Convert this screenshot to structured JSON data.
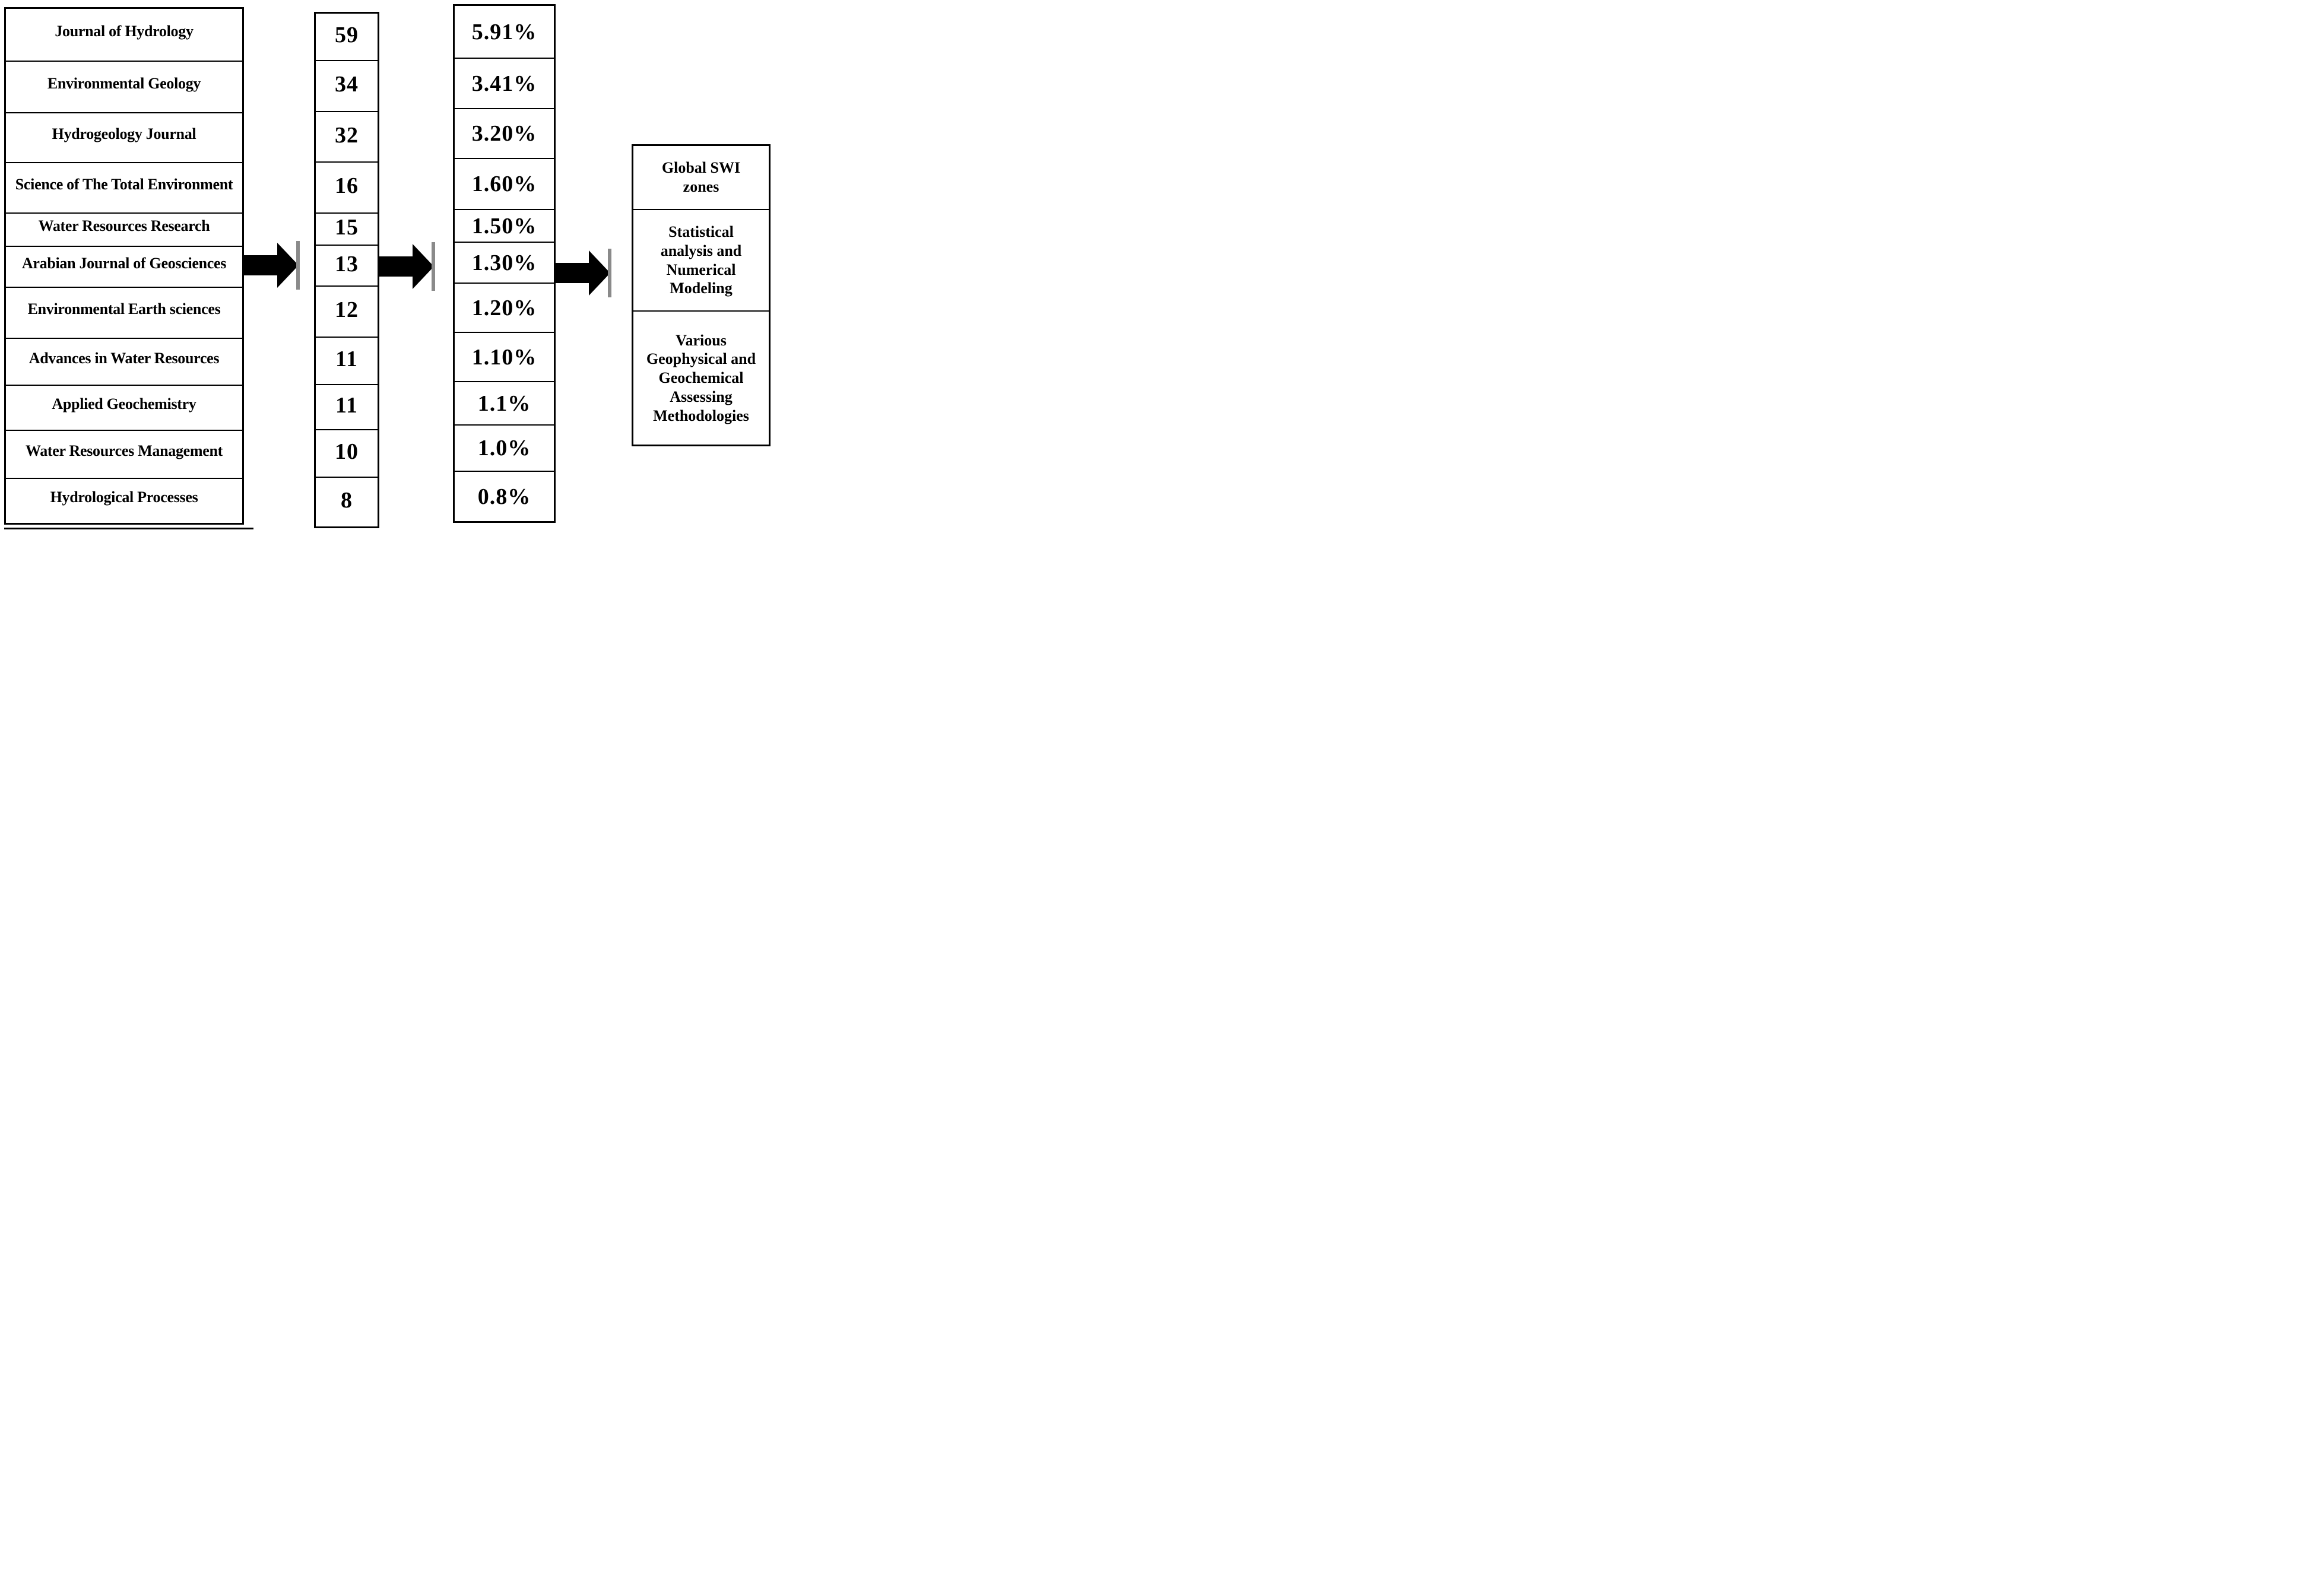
{
  "journal_table": {
    "rows": [
      {
        "name": "Journal of Hydrology",
        "count": "59",
        "percent": "5.91%"
      },
      {
        "name": "Environmental Geology",
        "count": "34",
        "percent": "3.41%"
      },
      {
        "name": "Hydrogeology Journal",
        "count": "32",
        "percent": "3.20%"
      },
      {
        "name": "Science of The Total Environment",
        "count": "16",
        "percent": "1.60%"
      },
      {
        "name": "Water Resources Research",
        "count": "15",
        "percent": "1.50%"
      },
      {
        "name": "Arabian Journal of Geosciences",
        "count": "13",
        "percent": "1.30%"
      },
      {
        "name": "Environmental Earth sciences",
        "count": "12",
        "percent": "1.20%"
      },
      {
        "name": "Advances in Water Resources",
        "count": "11",
        "percent": "1.10%"
      },
      {
        "name": "Applied Geochemistry",
        "count": "11",
        "percent": "1.1%"
      },
      {
        "name": "Water Resources Management",
        "count": "10",
        "percent": "1.0%"
      },
      {
        "name": "Hydrological Processes",
        "count": "8",
        "percent": "0.8%"
      }
    ]
  },
  "outcome_box": {
    "cells": [
      "Global SWI\nzones",
      "Statistical\nanalysis and\nNumerical\nModeling",
      "Various\nGeophysical and\nGeochemical\nAssessing\nMethodologies"
    ]
  },
  "colors": {
    "ink": "#000000",
    "paper": "#ffffff",
    "arrow_tip_bar": "#8a8a8a"
  }
}
